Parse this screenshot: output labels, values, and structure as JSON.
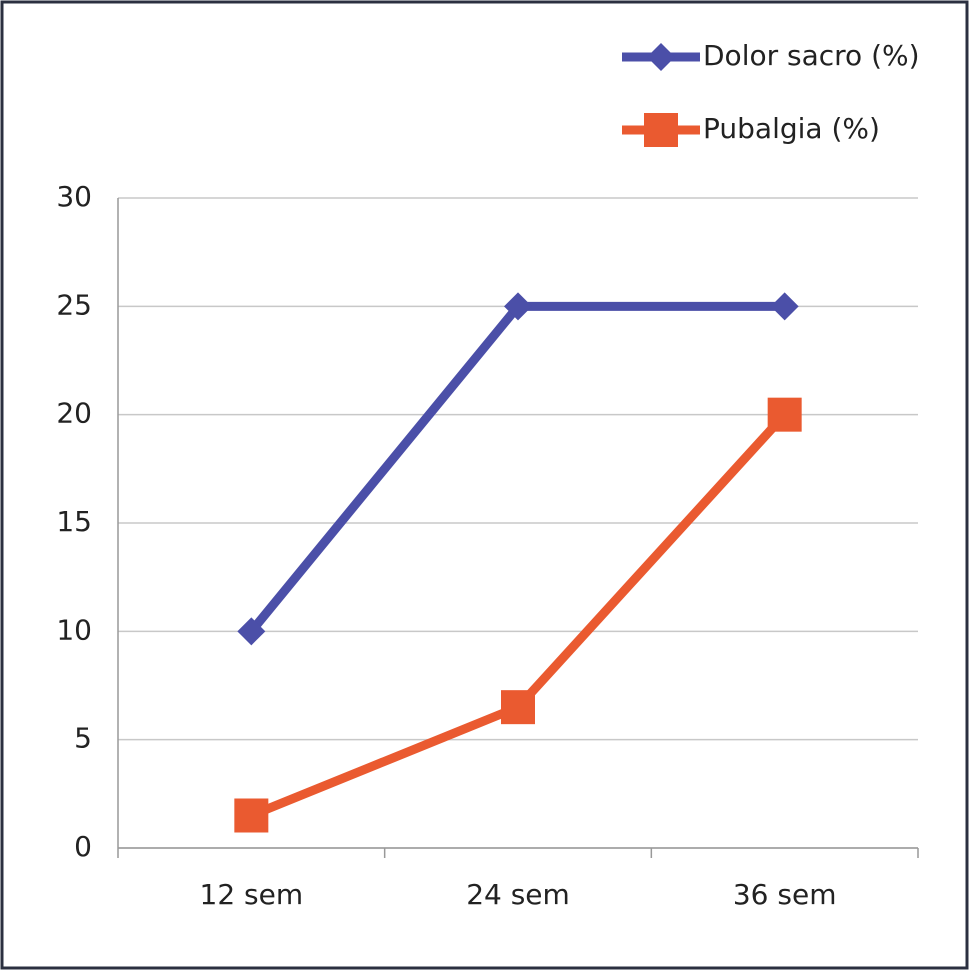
{
  "chart_data": {
    "type": "line",
    "categories": [
      "12 sem",
      "24 sem",
      "36 sem"
    ],
    "series": [
      {
        "name": "Dolor sacro (%)",
        "color": "#4b4fa8",
        "marker": "diamond",
        "values": [
          10,
          25,
          25
        ]
      },
      {
        "name": "Pubalgia (%)",
        "color": "#ea5a30",
        "marker": "square",
        "values": [
          1.5,
          6.5,
          20
        ]
      }
    ],
    "ylim": [
      0,
      30
    ],
    "yticks": [
      0,
      5,
      10,
      15,
      20,
      25,
      30
    ],
    "grid": true,
    "legend": "top-right"
  }
}
